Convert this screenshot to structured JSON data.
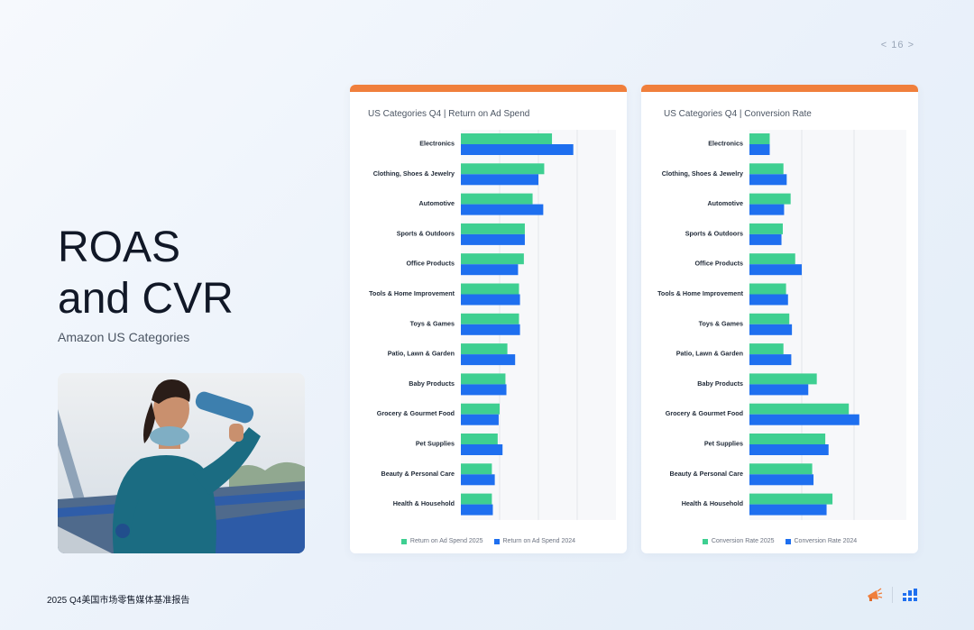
{
  "pager": {
    "prev_icon": "chevron-left-icon",
    "page": "16",
    "next_icon": "chevron-right-icon"
  },
  "heading": {
    "line1": "ROAS",
    "line2": "and CVR",
    "subtitle": "Amazon US Categories"
  },
  "colors": {
    "series_2025": "#3ecf91",
    "series_2024": "#1e6fef",
    "accent": "#f07f3c"
  },
  "footer": {
    "report_title": "2025 Q4美国市场零售媒体基准报告"
  },
  "chart_data": [
    {
      "type": "bar",
      "orientation": "horizontal",
      "title": "US Categories Q4 |  Return on Ad Spend",
      "categories": [
        "Electronics",
        "Clothing, Shoes & Jewelry",
        "Automotive",
        "Sports & Outdoors",
        "Office Products",
        "Tools & Home Improvement",
        "Toys & Games",
        "Patio, Lawn & Garden",
        "Baby Products",
        "Grocery & Gourmet Food",
        "Pet Supplies",
        "Beauty & Personal Care",
        "Health & Household"
      ],
      "series": [
        {
          "name": "Return on Ad Spend 2025",
          "values": [
            9.4,
            8.6,
            7.4,
            6.6,
            6.5,
            6.0,
            6.0,
            4.8,
            4.6,
            4.0,
            3.8,
            3.2,
            3.2
          ]
        },
        {
          "name": "Return on Ad Spend 2024",
          "values": [
            11.6,
            8.0,
            8.5,
            6.6,
            5.9,
            6.1,
            6.1,
            5.6,
            4.7,
            3.9,
            4.3,
            3.5,
            3.3
          ]
        }
      ],
      "xlim": [
        0,
        16
      ],
      "grid": true,
      "axis_labels_shown": false,
      "legend": "bottom-center"
    },
    {
      "type": "bar",
      "orientation": "horizontal",
      "title": "US Categories Q4 |  Conversion Rate",
      "categories": [
        "Electronics",
        "Clothing, Shoes & Jewelry",
        "Automotive",
        "Sports & Outdoors",
        "Office Products",
        "Tools & Home Improvement",
        "Toys & Games",
        "Patio, Lawn & Garden",
        "Baby Products",
        "Grocery & Gourmet Food",
        "Pet Supplies",
        "Beauty & Personal Care",
        "Health & Household"
      ],
      "series": [
        {
          "name": "Conversion Rate 2025",
          "values": [
            3.1,
            5.2,
            6.3,
            5.1,
            7.0,
            5.6,
            6.1,
            5.2,
            10.3,
            15.2,
            11.6,
            9.6,
            12.7
          ]
        },
        {
          "name": "Conversion Rate 2024",
          "values": [
            3.1,
            5.7,
            5.3,
            4.9,
            8.0,
            5.9,
            6.5,
            6.4,
            9.0,
            16.8,
            12.1,
            9.8,
            11.8
          ]
        }
      ],
      "xlim": [
        0,
        24
      ],
      "grid": true,
      "axis_labels_shown": false,
      "legend": "bottom-center"
    }
  ]
}
